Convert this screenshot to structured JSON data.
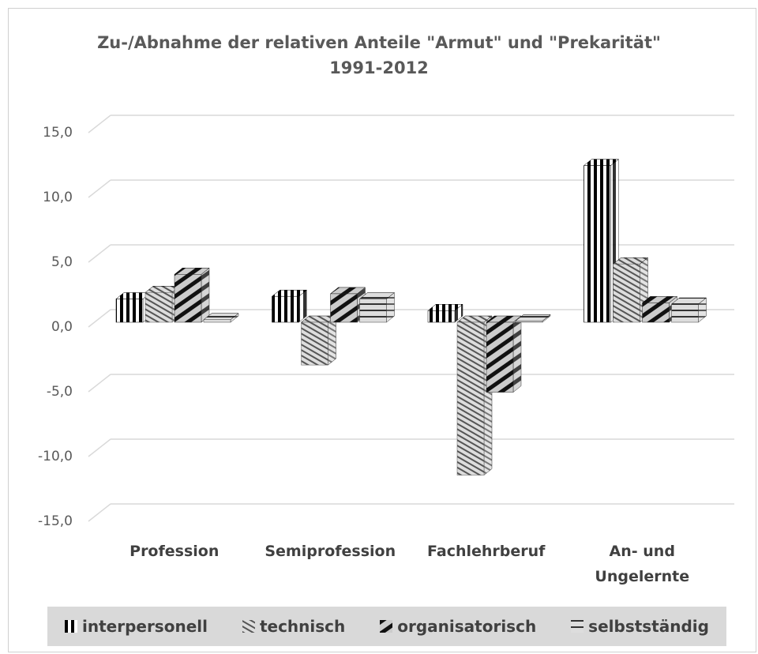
{
  "chart_data": {
    "type": "bar3d",
    "title": "Zu-/Abnahme der relativen Anteile \"Armut\" und \"Prekarität\"\n1991-2012",
    "categories": [
      "Profession",
      "Semiprofession",
      "Fachlehrberuf",
      "An- und Ungelernte"
    ],
    "series": [
      {
        "name": "interpersonell",
        "color": "#000000",
        "values": [
          1.8,
          2.0,
          0.9,
          12.1
        ]
      },
      {
        "name": "technisch",
        "color": "#595959",
        "values": [
          2.3,
          -3.3,
          -11.8,
          4.5
        ]
      },
      {
        "name": "organisatorisch",
        "color": "#262626",
        "values": [
          3.7,
          2.2,
          -5.4,
          1.5
        ]
      },
      {
        "name": "selbstständig",
        "color": "#404040",
        "values": [
          0.2,
          1.8,
          0.1,
          1.4
        ]
      }
    ],
    "ylim": [
      -15,
      15
    ],
    "yticks": [
      {
        "value": -15,
        "label": "-15,0"
      },
      {
        "value": -10,
        "label": "-10,0"
      },
      {
        "value": -5,
        "label": "-5,0"
      },
      {
        "value": 0,
        "label": "0,0"
      },
      {
        "value": 5,
        "label": "5,0"
      },
      {
        "value": 10,
        "label": "10,0"
      },
      {
        "value": 15,
        "label": "15,0"
      }
    ],
    "grid": true,
    "legend": "bottom"
  }
}
